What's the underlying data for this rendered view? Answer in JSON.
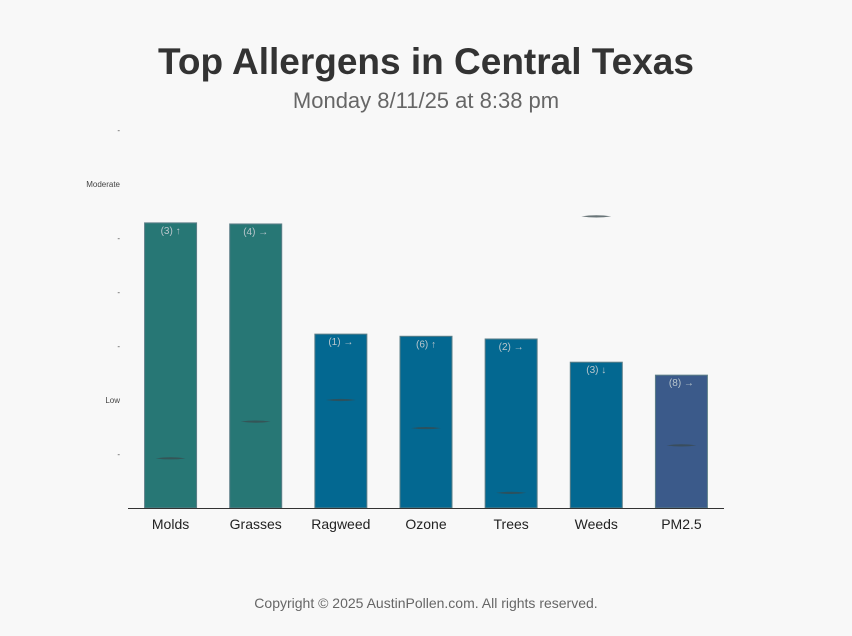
{
  "chart_data": {
    "type": "bar",
    "title": "Top Allergens in Central Texas",
    "subtitle": "Monday 8/11/25 at 8:38 pm",
    "categories": [
      "Molds",
      "Grasses",
      "Ragweed",
      "Ozone",
      "Trees",
      "Weeds",
      "PM2.5"
    ],
    "values": [
      5.28,
      5.26,
      3.22,
      3.18,
      3.13,
      2.7,
      2.46
    ],
    "bar_labels": [
      "(3) ↑",
      "(4) →",
      "(1) →",
      "(6) ↑",
      "(2) →",
      "(3) ↓",
      "(8) →"
    ],
    "reference_markers": [
      0.92,
      1.6,
      2.0,
      1.48,
      0.28,
      5.4,
      1.16
    ],
    "bar_colors": [
      "#277775",
      "#277775",
      "#036891",
      "#036891",
      "#036891",
      "#036891",
      "#3b5a8a"
    ],
    "ylim": [
      0,
      7
    ],
    "yticks": [
      {
        "value": 7,
        "label": "-"
      },
      {
        "value": 6,
        "label": "Moderate"
      },
      {
        "value": 5,
        "label": "-"
      },
      {
        "value": 4,
        "label": "-"
      },
      {
        "value": 3,
        "label": "-"
      },
      {
        "value": 2,
        "label": "Low"
      },
      {
        "value": 1,
        "label": "-"
      }
    ],
    "grid": false,
    "legend": "none"
  },
  "footer": {
    "copyright": "Copyright © 2025 AustinPollen.com.  All rights reserved."
  }
}
